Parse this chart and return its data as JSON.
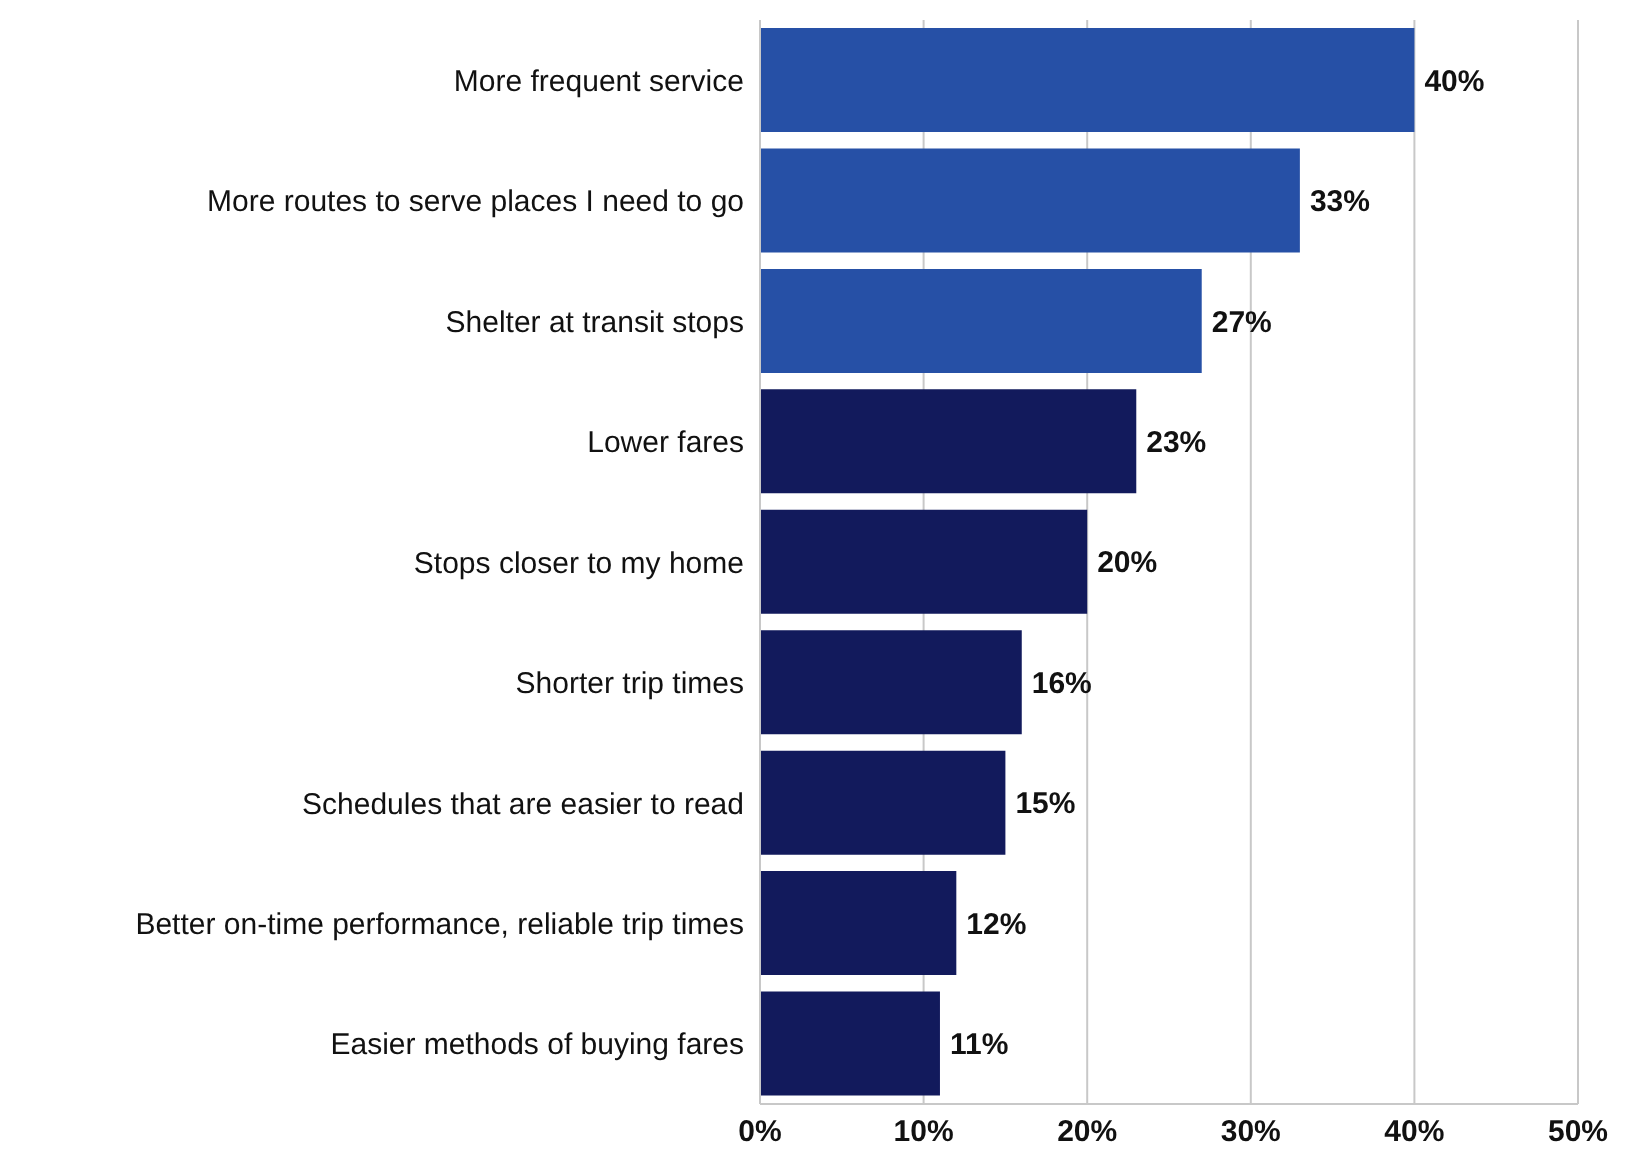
{
  "chart_data": {
    "type": "bar",
    "orientation": "horizontal",
    "categories": [
      "More frequent service",
      "More routes to serve places I need to go",
      "Shelter at transit stops",
      "Lower fares",
      "Stops closer to my home",
      "Shorter trip times",
      "Schedules that are easier to read",
      "Better on-time performance, reliable trip times",
      "Easier methods of buying fares"
    ],
    "values": [
      40,
      33,
      27,
      23,
      20,
      16,
      15,
      12,
      11
    ],
    "value_labels": [
      "40%",
      "33%",
      "27%",
      "23%",
      "20%",
      "16%",
      "15%",
      "12%",
      "11%"
    ],
    "colors": [
      "#2650a6",
      "#2650a6",
      "#2650a6",
      "#121a5c",
      "#121a5c",
      "#121a5c",
      "#121a5c",
      "#121a5c",
      "#121a5c"
    ],
    "xlim": [
      0,
      50
    ],
    "xticks": [
      {
        "value": 0,
        "label": "0%"
      },
      {
        "value": 10,
        "label": "10%"
      },
      {
        "value": 20,
        "label": "20%"
      },
      {
        "value": 30,
        "label": "30%"
      },
      {
        "value": 40,
        "label": "40%"
      },
      {
        "value": 50,
        "label": "50%"
      }
    ],
    "grid": "x"
  }
}
